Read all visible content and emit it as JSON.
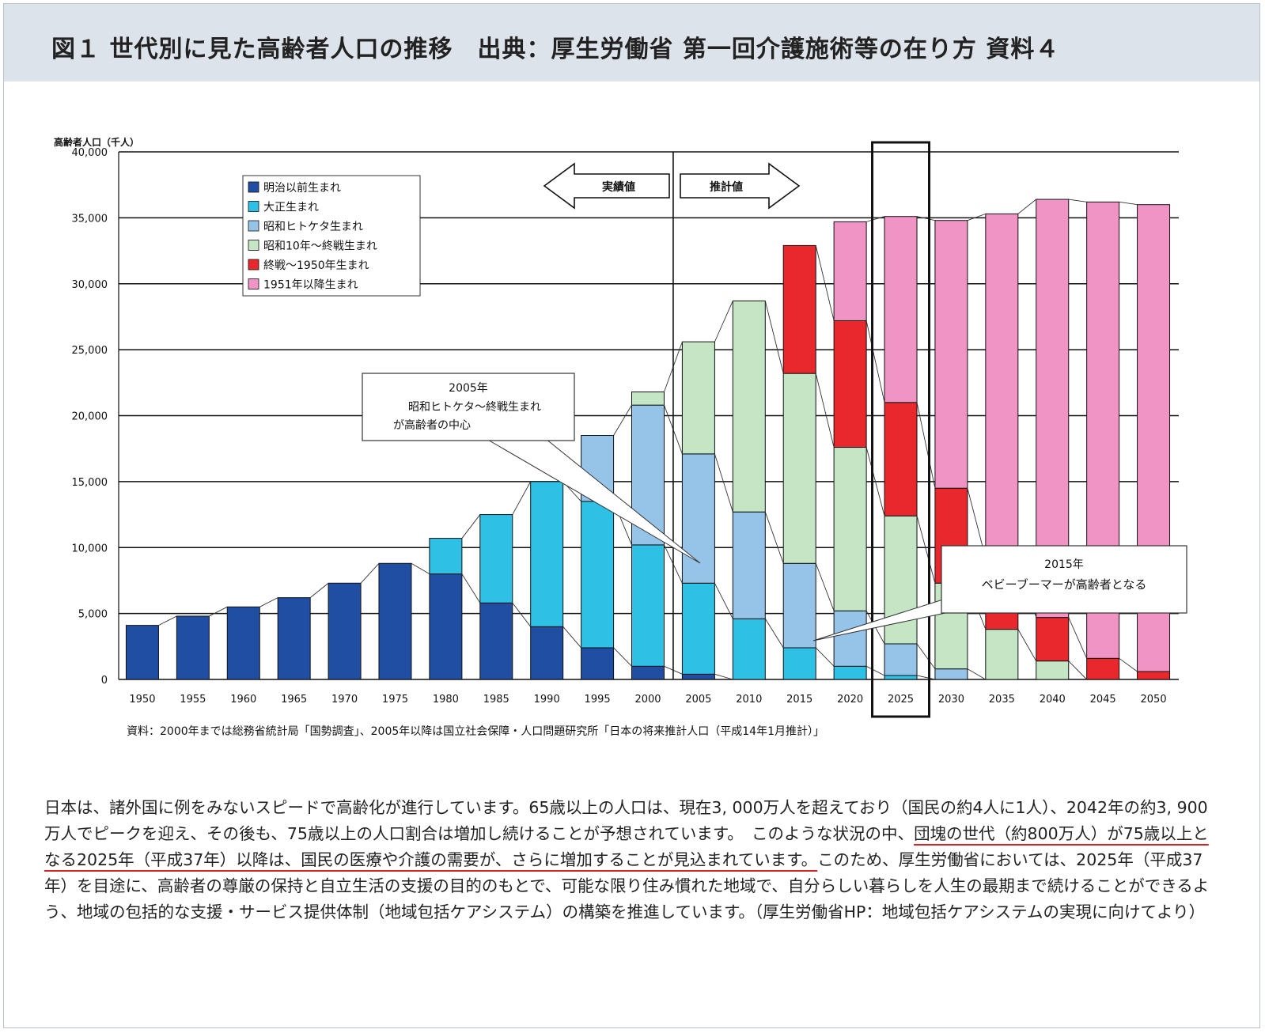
{
  "header": {
    "title": "図１ 世代別に見た高齢者人口の推移　出典：厚生労働省 第一回介護施術等の在り方 資料４"
  },
  "chart_data": {
    "type": "bar",
    "stacked": true,
    "ylabel": "高齢者人口（千人）",
    "ylim": [
      0,
      40000
    ],
    "yticks": [
      "0",
      "5,000",
      "10,000",
      "15,000",
      "20,000",
      "25,000",
      "30,000",
      "35,000",
      "40,000"
    ],
    "categories": [
      "1950",
      "1955",
      "1960",
      "1965",
      "1970",
      "1975",
      "1980",
      "1985",
      "1990",
      "1995",
      "2000",
      "2005",
      "2010",
      "2015",
      "2020",
      "2025",
      "2030",
      "2035",
      "2040",
      "2045",
      "2050"
    ],
    "series": [
      {
        "name": "明治以前生まれ",
        "color": "#1f4ea3",
        "values": [
          4100,
          4800,
          5500,
          6200,
          7300,
          8800,
          8000,
          5800,
          4000,
          2400,
          1000,
          400,
          0,
          0,
          0,
          0,
          0,
          0,
          0,
          0,
          0
        ]
      },
      {
        "name": "大正生まれ",
        "color": "#2fc0e6",
        "values": [
          0,
          0,
          0,
          0,
          0,
          0,
          2700,
          6700,
          11000,
          11100,
          9200,
          6900,
          4600,
          2400,
          1000,
          300,
          0,
          0,
          0,
          0,
          0
        ]
      },
      {
        "name": "昭和ヒトケタ生まれ",
        "color": "#96c3e8",
        "values": [
          0,
          0,
          0,
          0,
          0,
          0,
          0,
          0,
          0,
          5000,
          10600,
          9800,
          8100,
          6400,
          4200,
          2400,
          800,
          0,
          0,
          0,
          0
        ]
      },
      {
        "name": "昭和10年～終戦生まれ",
        "color": "#c4e6c4",
        "values": [
          0,
          0,
          0,
          0,
          0,
          0,
          0,
          0,
          0,
          0,
          1000,
          8500,
          16000,
          14400,
          12400,
          9700,
          6500,
          3800,
          1400,
          0,
          0
        ]
      },
      {
        "name": "終戦～1950年生まれ",
        "color": "#e8282c",
        "values": [
          0,
          0,
          0,
          0,
          0,
          0,
          0,
          0,
          0,
          0,
          0,
          0,
          0,
          9700,
          9600,
          8600,
          7200,
          5400,
          3300,
          1600,
          600
        ]
      },
      {
        "name": "1951年以降生まれ",
        "color": "#ef94c4",
        "values": [
          0,
          0,
          0,
          0,
          0,
          0,
          0,
          0,
          0,
          0,
          0,
          0,
          0,
          0,
          7500,
          14100,
          20300,
          26100,
          31700,
          34600,
          35400
        ]
      }
    ],
    "legend_position": "top-left",
    "arrows": {
      "left": "実績値",
      "right": "推計値"
    },
    "annotations": [
      {
        "year": "2005年",
        "line2": "昭和ヒトケタ～終戦生まれ",
        "line3": "が高齢者の中心"
      },
      {
        "year": "2015年",
        "line2": "ベビーブーマーが高齢者となる"
      }
    ],
    "highlight_category": "2025",
    "source": "資料：2000年までは総務省統計局「国勢調査」、2005年以降は国立社会保障・人口問題研究所「日本の将来推計人口（平成14年1月推計）」"
  },
  "body": {
    "p1": "日本は、諸外国に例をみないスピードで高齢化が進行しています。65歳以上の人口は、現在3, 000万人を超えており（国民の約4人に1人）、2042年の約3, 900万人でピークを迎え、その後も、75歳以上の人口割合は増加し続けることが予想されています。　このような状況の中、",
    "underlined": "団塊の世代（約800万人）が75歳以上となる2025年（平成37年）以降は、国民の医療や介護の需要が、さらに増加することが見込まれています。",
    "p2": "このため、厚生労働省においては、2025年（平成37年）を目途に、高齢者の尊厳の保持と自立生活の支援の目的のもとで、可能な限り住み慣れた地域で、自分らしい暮らしを人生の最期まで続けることができるよう、地域の包括的な支援・サービス提供体制（地域包括ケアシステム）の構築を推進しています。（厚生労働省HP：地域包括ケアシステムの実現に向けてより）"
  }
}
